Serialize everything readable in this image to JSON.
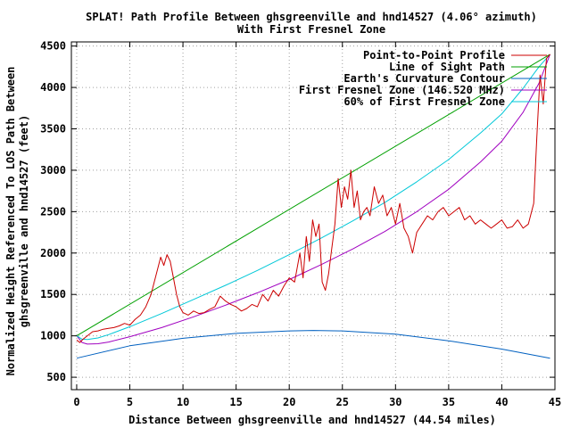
{
  "chart_data": {
    "type": "line",
    "title": "SPLAT! Path Profile Between ghsgreenville and hnd14527 (4.06° azimuth)",
    "subtitle": "With First Fresnel Zone",
    "xlabel": "Distance Between ghsgreenville and hnd14527 (44.54 miles)",
    "ylabel_line1": "Normalized Height Referenced To LOS Path Between",
    "ylabel_line2": "ghsgreenville and hnd14527 (feet)",
    "xlim": [
      -0.5,
      45
    ],
    "ylim": [
      350,
      4550
    ],
    "x_ticks": [
      0,
      5,
      10,
      15,
      20,
      25,
      30,
      35,
      40,
      45
    ],
    "x_tick_labels": [
      "0",
      "5",
      "10",
      "15",
      "20",
      "25",
      "30",
      "35",
      "40",
      "45"
    ],
    "y_ticks": [
      500,
      1000,
      1500,
      2000,
      2500,
      3000,
      3500,
      4000,
      4500
    ],
    "y_tick_labels": [
      "500",
      "1000",
      "1500",
      "2000",
      "2500",
      "3000",
      "3500",
      "4000",
      "4500"
    ],
    "grid": true,
    "legend_position": "top-right",
    "series": [
      {
        "name": "Point-to-Point Profile",
        "color": "#cc0000",
        "x": [
          0,
          0.3,
          0.6,
          1,
          1.5,
          2,
          2.5,
          3,
          3.5,
          4,
          4.5,
          5,
          5.5,
          6,
          6.5,
          7,
          7.3,
          7.6,
          7.9,
          8.2,
          8.5,
          8.8,
          9.1,
          9.4,
          9.7,
          10,
          10.5,
          11,
          11.5,
          12,
          12.5,
          13,
          13.5,
          14,
          14.5,
          15,
          15.5,
          16,
          16.5,
          17,
          17.5,
          18,
          18.5,
          19,
          19.5,
          20,
          20.5,
          21,
          21.3,
          21.6,
          21.9,
          22.2,
          22.5,
          22.8,
          23.1,
          23.4,
          23.7,
          24,
          24.3,
          24.6,
          24.9,
          25.2,
          25.5,
          25.8,
          26.1,
          26.4,
          26.7,
          27,
          27.3,
          27.6,
          28,
          28.4,
          28.8,
          29.2,
          29.6,
          30,
          30.4,
          30.8,
          31.2,
          31.6,
          32,
          32.5,
          33,
          33.5,
          34,
          34.5,
          35,
          35.5,
          36,
          36.5,
          37,
          37.5,
          38,
          38.5,
          39,
          39.5,
          40,
          40.5,
          41,
          41.5,
          42,
          42.5,
          43,
          43.3,
          43.6,
          43.9,
          44.2,
          44.54
        ],
        "y": [
          950,
          920,
          960,
          1000,
          1050,
          1060,
          1080,
          1090,
          1100,
          1120,
          1150,
          1130,
          1200,
          1250,
          1350,
          1500,
          1650,
          1800,
          1950,
          1850,
          1980,
          1900,
          1700,
          1500,
          1350,
          1280,
          1250,
          1300,
          1270,
          1280,
          1320,
          1350,
          1480,
          1420,
          1380,
          1350,
          1300,
          1330,
          1380,
          1350,
          1500,
          1420,
          1550,
          1480,
          1600,
          1700,
          1650,
          2000,
          1700,
          2200,
          1900,
          2400,
          2200,
          2350,
          1650,
          1550,
          1750,
          2050,
          2350,
          2900,
          2550,
          2800,
          2650,
          3000,
          2550,
          2750,
          2400,
          2500,
          2550,
          2450,
          2800,
          2600,
          2700,
          2450,
          2550,
          2350,
          2600,
          2300,
          2200,
          2000,
          2250,
          2350,
          2450,
          2400,
          2500,
          2550,
          2450,
          2500,
          2550,
          2400,
          2450,
          2350,
          2400,
          2350,
          2300,
          2350,
          2400,
          2300,
          2320,
          2400,
          2300,
          2350,
          2600,
          3400,
          4150,
          3800,
          4350,
          4400
        ]
      },
      {
        "name": "Line of Sight Path",
        "color": "#00a000",
        "x": [
          0,
          44.54
        ],
        "y": [
          1000,
          4400
        ]
      },
      {
        "name": "Earth's Curvature Contour",
        "color": "#0060c0",
        "x": [
          0,
          5,
          10,
          15,
          20,
          22.27,
          25,
          30,
          35,
          40,
          44.54
        ],
        "y": [
          730,
          880,
          970,
          1030,
          1060,
          1065,
          1060,
          1020,
          940,
          840,
          730
        ]
      },
      {
        "name": "First Fresnel Zone (146.520 MHz)",
        "color": "#a000c0",
        "x": [
          0,
          0.5,
          1,
          2,
          3,
          5,
          8,
          11,
          14,
          17,
          20,
          23,
          26,
          29,
          32,
          35,
          38,
          40,
          42,
          43.5,
          44.54
        ],
        "y": [
          1000,
          920,
          900,
          905,
          925,
          990,
          1100,
          1230,
          1370,
          1520,
          1680,
          1860,
          2050,
          2260,
          2500,
          2770,
          3100,
          3350,
          3700,
          4050,
          4400
        ]
      },
      {
        "name": "60% of First Fresnel Zone",
        "color": "#00c8d8",
        "x": [
          0,
          0.5,
          1,
          2,
          3,
          5,
          8,
          11,
          14,
          17,
          20,
          23,
          26,
          29,
          32,
          35,
          38,
          40,
          42,
          43.5,
          44.54
        ],
        "y": [
          1000,
          960,
          955,
          975,
          1015,
          1110,
          1270,
          1440,
          1610,
          1790,
          1980,
          2180,
          2390,
          2610,
          2860,
          3130,
          3450,
          3680,
          3990,
          4250,
          4400
        ]
      }
    ]
  }
}
